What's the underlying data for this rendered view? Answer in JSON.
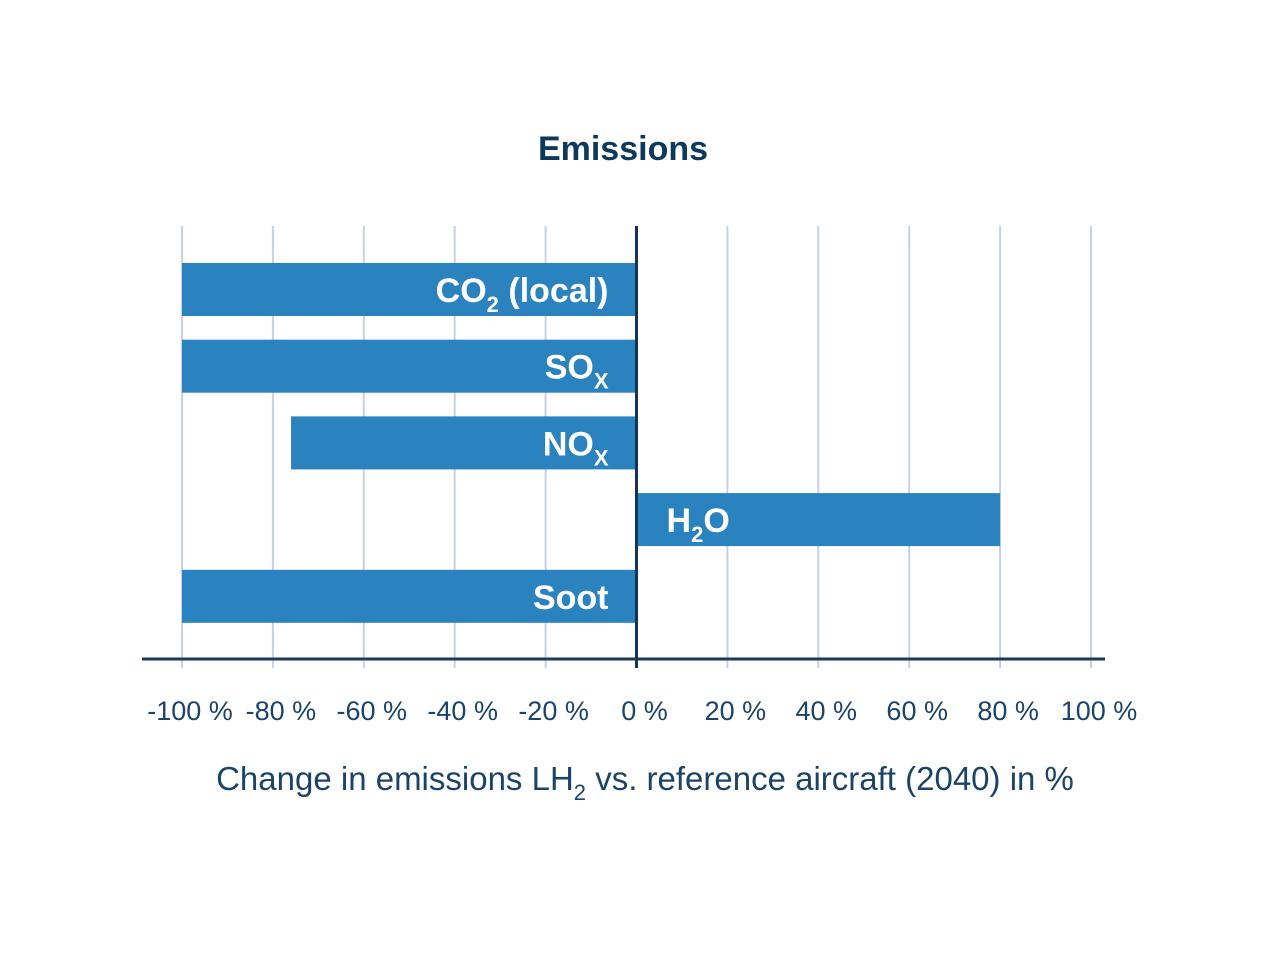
{
  "chart_data": {
    "type": "bar",
    "orientation": "horizontal",
    "title": "Emissions",
    "xlabel": {
      "parts": [
        {
          "text": "Change in emissions LH"
        },
        {
          "text": "2",
          "sub": true
        },
        {
          "text": " vs. reference aircraft (2040) in %"
        }
      ]
    },
    "ylabel": "",
    "xlim": [
      -100,
      100
    ],
    "x_ticks": [
      -100,
      -80,
      -60,
      -40,
      -20,
      0,
      20,
      40,
      60,
      80,
      100
    ],
    "x_tick_labels": [
      "-100 %",
      "-80 %",
      "-60 %",
      "-40 %",
      "-20 %",
      "0 %",
      "20 %",
      "40 %",
      "60 %",
      "80 %",
      "100 %"
    ],
    "grid": true,
    "legend": "none",
    "bar_color": "#2a82be",
    "categories": [
      {
        "name": "CO2 (local)",
        "label_parts": [
          {
            "text": "CO"
          },
          {
            "text": "2",
            "sub": true
          },
          {
            "text": " (local)"
          }
        ]
      },
      {
        "name": "SOx",
        "label_parts": [
          {
            "text": "SO"
          },
          {
            "text": "X",
            "sub": true
          }
        ]
      },
      {
        "name": "NOx",
        "label_parts": [
          {
            "text": "NO"
          },
          {
            "text": "X",
            "sub": true
          }
        ]
      },
      {
        "name": "H2O",
        "label_parts": [
          {
            "text": "H"
          },
          {
            "text": "2",
            "sub": true
          },
          {
            "text": "O"
          }
        ]
      },
      {
        "name": "Soot",
        "label_parts": [
          {
            "text": "Soot"
          }
        ]
      }
    ],
    "values": [
      -100,
      -100,
      -76,
      80,
      -100
    ]
  }
}
